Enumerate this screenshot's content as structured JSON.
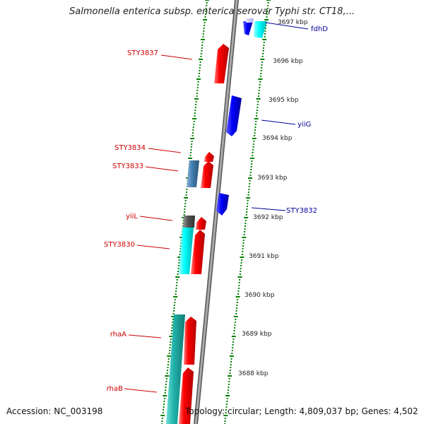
{
  "title": "Salmonella enterica subsp. enterica serovar Typhi str. CT18,...",
  "footer": {
    "accession": "Accession: NC_003198",
    "topology": "Topology: circular; Length: 4,809,037 bp; Genes: 4,502"
  },
  "colors": {
    "forward_gene": "#ff0000",
    "reverse_gene": "#0000ff",
    "label_forward": "#cc0000",
    "label_reverse": "#000099",
    "tick": "#008000",
    "backbone": "#888888",
    "cyan_feature": "#00ffff",
    "steel_feature": "#4682b4",
    "dark_feature": "#555555",
    "lavender_feature": "#ccccff",
    "teal_feature": "#20b2aa"
  },
  "kbp_labels": [
    "3697 kbp",
    "3696 kbp",
    "3695 kbp",
    "3694 kbp",
    "3693 kbp",
    "3692 kbp",
    "3691 kbp",
    "3690 kbp",
    "3689 kbp",
    "3688 kbp"
  ],
  "gene_labels": {
    "left": [
      "STY3837",
      "STY3834",
      "STY3833",
      "yiiL",
      "STY3830",
      "rhaA",
      "rhaB"
    ],
    "right": [
      "fdhD",
      "yiiG",
      "STY3832"
    ]
  }
}
